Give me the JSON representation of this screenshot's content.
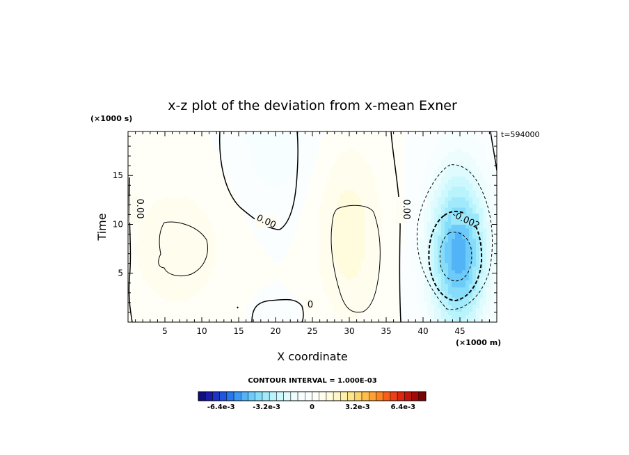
{
  "chart_data": {
    "type": "heatmap",
    "title": "x-z plot of the deviation from x-mean Exner",
    "xlabel": "X coordinate",
    "ylabel": "Time",
    "x_unit": "(×1000 m)",
    "y_unit": "(×1000 s)",
    "time_stamp": "t=594000",
    "xlim": [
      0,
      50
    ],
    "ylim": [
      0,
      19.5
    ],
    "x_ticks": [
      5,
      10,
      15,
      20,
      25,
      30,
      35,
      40,
      45
    ],
    "y_ticks": [
      5,
      10,
      15
    ],
    "contour_interval_text": "CONTOUR INTERVAL = 1.000E-03",
    "contour_labels": [
      "0.00",
      "0.00",
      "0.00",
      "0",
      "-0.002"
    ],
    "colorbar": {
      "vmin": -0.008,
      "vmax": 0.008,
      "n_levels": 32,
      "tick_labels": [
        "-6.4e-3",
        "-3.2e-3",
        "0",
        "3.2e-3",
        "6.4e-3"
      ],
      "tick_values": [
        -0.0064,
        -0.0032,
        0,
        0.0032,
        0.0064
      ]
    },
    "features": [
      {
        "name": "positive-left",
        "x": 6.5,
        "y": 7.5,
        "sx": 7,
        "sy": 7,
        "amp": 0.0009
      },
      {
        "name": "positive-mid",
        "x": 30,
        "y": 9,
        "sx": 4.5,
        "sy": 9,
        "amp": 0.0013
      },
      {
        "name": "negative-top",
        "x": 20,
        "y": 19,
        "sx": 5,
        "sy": 7,
        "amp": -0.0009
      },
      {
        "name": "negative-bottom",
        "x": 20,
        "y": 0.5,
        "sx": 3,
        "sy": 2,
        "amp": -0.0004
      },
      {
        "name": "negative-right",
        "x": 44.8,
        "y": 7,
        "sx": 4,
        "sy": 8.5,
        "amp": -0.0048
      }
    ]
  },
  "colors": {
    "colorbar": [
      "#0d0d80",
      "#1a1aa6",
      "#1f33c7",
      "#1f56e0",
      "#2977ee",
      "#3d97f5",
      "#52b3f7",
      "#6ccbf9",
      "#86ddfa",
      "#a0eafb",
      "#b9f3fc",
      "#cdf8fd",
      "#dffbfe",
      "#edfdfe",
      "#f6feff",
      "#fbfeff",
      "#fffff8",
      "#fffdee",
      "#fffbdd",
      "#fff6c6",
      "#fff0a8",
      "#ffe58a",
      "#ffd36a",
      "#ffbd4d",
      "#ffa233",
      "#ff8322",
      "#f86018",
      "#ee4012",
      "#dd2610",
      "#c3140c",
      "#a10a08",
      "#7a0404"
    ]
  }
}
